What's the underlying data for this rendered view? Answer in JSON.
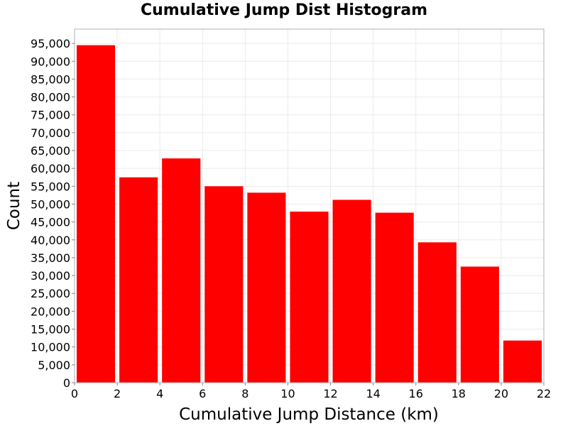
{
  "chart_data": {
    "type": "bar",
    "title": "Cumulative Jump Dist Histogram",
    "xlabel": "Cumulative Jump Distance (km)",
    "ylabel": "Count",
    "bin_width": 2,
    "bins": [
      {
        "x0": 0,
        "x1": 2,
        "value": 94500
      },
      {
        "x0": 2,
        "x1": 4,
        "value": 57500
      },
      {
        "x0": 4,
        "x1": 6,
        "value": 62800
      },
      {
        "x0": 6,
        "x1": 8,
        "value": 55000
      },
      {
        "x0": 8,
        "x1": 10,
        "value": 53200
      },
      {
        "x0": 10,
        "x1": 12,
        "value": 47900
      },
      {
        "x0": 12,
        "x1": 14,
        "value": 51200
      },
      {
        "x0": 14,
        "x1": 16,
        "value": 47600
      },
      {
        "x0": 16,
        "x1": 18,
        "value": 39300
      },
      {
        "x0": 18,
        "x1": 20,
        "value": 32500
      },
      {
        "x0": 20,
        "x1": 22,
        "value": 11800
      }
    ],
    "xlim": [
      0,
      22
    ],
    "ylim": [
      0,
      99000
    ],
    "x_ticks": [
      "0",
      "2",
      "4",
      "6",
      "8",
      "10",
      "12",
      "14",
      "16",
      "18",
      "20",
      "22"
    ],
    "y_ticks": [
      "0",
      "5,000",
      "10,000",
      "15,000",
      "20,000",
      "25,000",
      "30,000",
      "35,000",
      "40,000",
      "45,000",
      "50,000",
      "55,000",
      "60,000",
      "65,000",
      "70,000",
      "75,000",
      "80,000",
      "85,000",
      "90,000",
      "95,000"
    ],
    "grid": true,
    "bar_color": "#ff0000",
    "grid_color": "#ebebeb",
    "border_color": "#b0b0b0"
  }
}
